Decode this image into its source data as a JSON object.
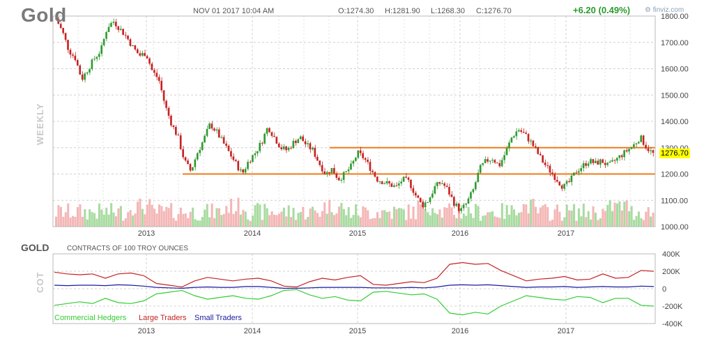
{
  "header": {
    "title": "Gold",
    "datetime": "NOV 01 2017 10:04 AM",
    "open": "O:1274.30",
    "high": "H:1281.90",
    "low": "L:1268.30",
    "close": "C:1276.70",
    "change": "+6.20 (0.49%)",
    "brand": "finviz.com",
    "brand_icon": "finviz-logo-icon"
  },
  "colors": {
    "up": "#2e9a2e",
    "down": "#c62222",
    "level": "#ee7b1a",
    "grid": "#d0d0d0",
    "vol_up": "#a8dba0",
    "vol_down": "#f4b6b6",
    "commercial": "#33cc33",
    "large": "#c62222",
    "small": "#1a1aa0"
  },
  "chart_data": [
    {
      "type": "candlestick",
      "timeframe_label": "WEEKLY",
      "ylim": [
        1000,
        1800
      ],
      "yticks": [
        "1800.00",
        "1700.00",
        "1600.00",
        "1500.00",
        "1400.00",
        "1300.00",
        "1200.00",
        "1100.00",
        "1000.00"
      ],
      "x_labels": [
        "2013",
        "2014",
        "2015",
        "2016",
        "2017"
      ],
      "last_price_label": "1276.70",
      "horizontal_levels": [
        1300,
        1200
      ],
      "price_path": [
        1790,
        1740,
        1670,
        1640,
        1560,
        1600,
        1640,
        1670,
        1760,
        1780,
        1750,
        1720,
        1680,
        1650,
        1660,
        1590,
        1560,
        1460,
        1390,
        1340,
        1250,
        1210,
        1280,
        1330,
        1390,
        1360,
        1320,
        1280,
        1240,
        1200,
        1250,
        1280,
        1320,
        1380,
        1340,
        1300,
        1290,
        1320,
        1340,
        1310,
        1290,
        1240,
        1200,
        1220,
        1180,
        1200,
        1230,
        1280,
        1260,
        1220,
        1180,
        1170,
        1160,
        1150,
        1180,
        1170,
        1120,
        1080,
        1100,
        1150,
        1170,
        1140,
        1090,
        1060,
        1090,
        1140,
        1220,
        1250,
        1260,
        1230,
        1280,
        1340,
        1370,
        1350,
        1320,
        1280,
        1240,
        1210,
        1180,
        1150,
        1170,
        1210,
        1230,
        1250,
        1240,
        1250,
        1230,
        1250,
        1270,
        1290,
        1310,
        1340,
        1300,
        1276.7
      ]
    },
    {
      "type": "line",
      "title": "GOLD",
      "subtitle": "CONTRACTS OF 100 TROY OUNCES",
      "side_label": "COT",
      "ylim": [
        -400000,
        400000
      ],
      "yticks": [
        "400K",
        "200K",
        "0",
        "-200K",
        "-400K"
      ],
      "x_labels": [
        "2013",
        "2014",
        "2015",
        "2016",
        "2017"
      ],
      "series": [
        {
          "name": "Commercial Hedgers",
          "values": [
            -190000,
            -170000,
            -150000,
            -170000,
            -110000,
            -160000,
            -170000,
            -140000,
            -60000,
            -40000,
            -20000,
            -80000,
            -120000,
            -100000,
            -80000,
            -110000,
            -120000,
            -80000,
            -20000,
            -10000,
            -70000,
            -110000,
            -90000,
            -130000,
            -140000,
            -40000,
            -30000,
            -50000,
            -70000,
            -60000,
            -120000,
            -280000,
            -300000,
            -270000,
            -290000,
            -200000,
            -140000,
            -80000,
            -100000,
            -120000,
            -130000,
            -90000,
            -100000,
            -160000,
            -110000,
            -110000,
            -190000,
            -200000
          ]
        },
        {
          "name": "Large Traders",
          "values": [
            190000,
            170000,
            160000,
            170000,
            120000,
            170000,
            180000,
            150000,
            60000,
            40000,
            20000,
            90000,
            130000,
            110000,
            90000,
            110000,
            120000,
            90000,
            30000,
            20000,
            80000,
            120000,
            100000,
            130000,
            150000,
            50000,
            40000,
            60000,
            80000,
            70000,
            120000,
            280000,
            300000,
            280000,
            290000,
            210000,
            150000,
            90000,
            110000,
            120000,
            140000,
            100000,
            110000,
            170000,
            120000,
            130000,
            210000,
            200000
          ]
        },
        {
          "name": "Small Traders",
          "values": [
            40000,
            35000,
            40000,
            40000,
            35000,
            45000,
            40000,
            30000,
            15000,
            10000,
            5000,
            15000,
            20000,
            15000,
            15000,
            25000,
            25000,
            15000,
            5000,
            5000,
            10000,
            15000,
            15000,
            15000,
            15000,
            10000,
            10000,
            10000,
            15000,
            10000,
            20000,
            40000,
            45000,
            40000,
            45000,
            35000,
            25000,
            15000,
            20000,
            20000,
            25000,
            15000,
            20000,
            25000,
            20000,
            20000,
            30000,
            25000
          ]
        }
      ]
    }
  ]
}
